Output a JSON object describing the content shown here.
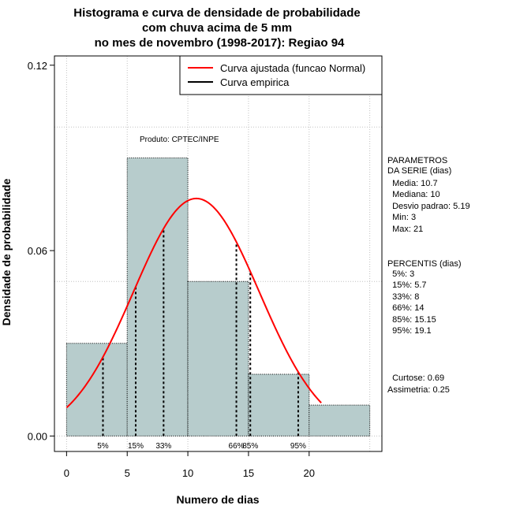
{
  "chart_data": {
    "type": "bar",
    "title_lines": [
      "Histograma e curva de densidade de probabilidade",
      "com chuva acima de 5 mm",
      "no mes de novembro (1998-2017): Regiao 94"
    ],
    "xlabel": "Numero de dias",
    "ylabel": "Densidade de probabilidade",
    "xlim": [
      -1,
      26
    ],
    "ylim": [
      -0.005,
      0.123
    ],
    "x_ticks": [
      0,
      5,
      10,
      15,
      20
    ],
    "y_ticks": [
      "0.00",
      "0.06",
      "0.12"
    ],
    "bins": [
      {
        "from": 0,
        "to": 5,
        "density": 0.03
      },
      {
        "from": 5,
        "to": 10,
        "density": 0.09
      },
      {
        "from": 10,
        "to": 15,
        "density": 0.05
      },
      {
        "from": 15,
        "to": 20,
        "density": 0.02
      },
      {
        "from": 20,
        "to": 25,
        "density": 0.01
      }
    ],
    "grid_x": [
      0,
      5,
      10,
      15,
      20,
      25
    ],
    "grid_y": [
      0.0,
      0.05,
      0.1
    ],
    "fitted_curve": {
      "name": "Curva ajustada (funcao Normal)",
      "color": "#ff0000",
      "mean": 10.7,
      "sd": 5.19,
      "x_range": [
        0,
        21
      ]
    },
    "empirical_curve": {
      "name": "Curva empirica",
      "color": "#000000"
    },
    "percentiles": [
      {
        "label": "5%",
        "x": 3
      },
      {
        "label": "15%",
        "x": 5.7
      },
      {
        "label": "33%",
        "x": 8
      },
      {
        "label": "66%",
        "x": 14
      },
      {
        "label": "85%",
        "x": 15.15
      },
      {
        "label": "95%",
        "x": 19.1
      }
    ],
    "bar_color": "#b7cccc",
    "credit": "Produto: CPTEC/INPE"
  },
  "side_panel": {
    "params_lines": [
      "PARAMETROS",
      "DA SERIE (dias)",
      "  Media: 10.7",
      "  Mediana: 10",
      "  Desvio padrao: 5.19",
      "  Min: 3",
      "  Max: 21"
    ],
    "percentis_lines": [
      "PERCENTIS (dias)",
      "  5%: 3",
      "  15%: 5.7",
      "  33%: 8",
      "  66%: 14",
      "  85%: 15.15",
      "  95%: 19.1"
    ],
    "stats_lines": [
      "  Curtose: 0.69",
      "Assimetria: 0.25"
    ]
  }
}
